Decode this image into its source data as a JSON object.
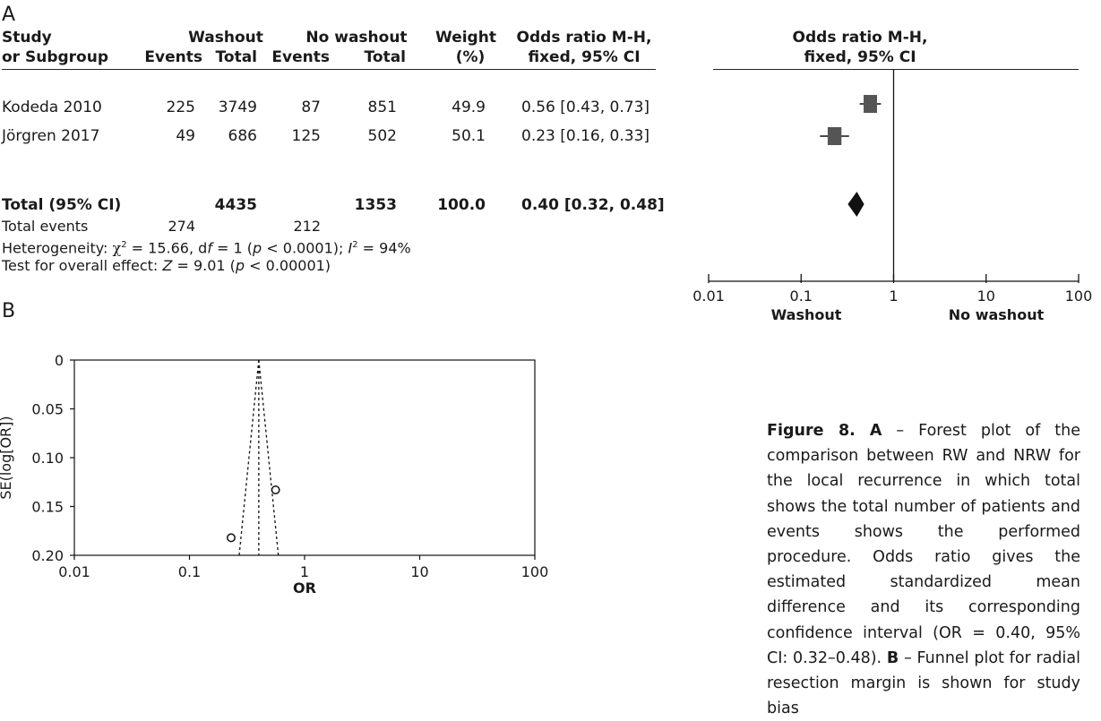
{
  "panel_a_label": "A",
  "panel_b_label": "B",
  "table": {
    "headers": {
      "study": [
        "Study",
        "or Subgroup"
      ],
      "washout": "Washout",
      "no_washout": "No washout",
      "events": "Events",
      "total": "Total",
      "weight": [
        "Weight",
        "(%)"
      ],
      "or": [
        "Odds ratio M-H,",
        "fixed, 95% CI"
      ],
      "plot_header": [
        "Odds ratio M-H,",
        "fixed, 95% CI"
      ]
    },
    "rows": [
      {
        "study": "Kodeda 2010",
        "w_events": "225",
        "w_total": "3749",
        "nw_events": "87",
        "nw_total": "851",
        "weight": "49.9",
        "or": "0.56 [0.43, 0.73]"
      },
      {
        "study": "Jörgren 2017",
        "w_events": "49",
        "w_total": "686",
        "nw_events": "125",
        "nw_total": "502",
        "weight": "50.1",
        "or": "0.23 [0.16, 0.33]"
      }
    ],
    "total_row": {
      "label": "Total (95% CI)",
      "w_total": "4435",
      "nw_total": "1353",
      "weight": "100.0",
      "or": "0.40 [0.32, 0.48]"
    },
    "events_row": {
      "label": "Total events",
      "w_events": "274",
      "nw_events": "212"
    },
    "heterogeneity": {
      "prefix": "Heterogeneity: ",
      "chi": "χ",
      "sup2": "2",
      "mid1": " = 15.66, d",
      "f": "f",
      "mid2": " = 1 (",
      "p": "p",
      "mid3": " < 0.0001); ",
      "I": "I",
      "sup2b": "2",
      "tail": " = 94%"
    },
    "overall_effect": {
      "prefix": "Test for overall effect: ",
      "Z": "Z",
      "mid": " = 9.01 (",
      "p": "p",
      "tail": " < 0.00001)"
    }
  },
  "chart_data": [
    {
      "type": "forest",
      "scale": "log",
      "xlim": [
        0.01,
        100
      ],
      "ticks": [
        0.01,
        0.1,
        1,
        10,
        100
      ],
      "tick_labels": [
        "0.01",
        "0.1",
        "1",
        "10",
        "100"
      ],
      "left_label": "Washout",
      "right_label": "No washout",
      "studies": [
        {
          "name": "Kodeda 2010",
          "or": 0.56,
          "ci": [
            0.43,
            0.73
          ],
          "weight": 49.9
        },
        {
          "name": "Jörgren 2017",
          "or": 0.23,
          "ci": [
            0.16,
            0.33
          ],
          "weight": 50.1
        }
      ],
      "pooled": {
        "or": 0.4,
        "ci": [
          0.32,
          0.48
        ]
      }
    },
    {
      "type": "scatter",
      "subtype": "funnel",
      "xscale": "log",
      "xlim": [
        0.01,
        100
      ],
      "ylim": [
        0,
        0.2
      ],
      "y_inverted": true,
      "xticks": [
        0.01,
        0.1,
        1,
        10,
        100
      ],
      "xtick_labels": [
        "0.01",
        "0.1",
        "1",
        "10",
        "100"
      ],
      "yticks": [
        0,
        0.05,
        0.1,
        0.15,
        0.2
      ],
      "ytick_labels": [
        "0",
        "0.05",
        "0.10",
        "0.15",
        "0.20"
      ],
      "xlabel": "OR",
      "ylabel": "SE(log[OR])",
      "pooled_or": 0.4,
      "points": [
        {
          "x": 0.56,
          "y": 0.133
        },
        {
          "x": 0.23,
          "y": 0.182
        }
      ]
    }
  ],
  "caption": {
    "fig": "Figure 8.",
    "a": "A",
    "a_text": " – Forest plot of the comparison between RW and NRW for the local recurrence in which total shows the total number of patients and events shows the performed procedure. Odds ratio gives the estimated standardized mean difference and its corresponding confidence interval (OR = 0.40, 95% CI: 0.32–0.48).",
    "b": "B",
    "b_text": " – Funnel plot for radial resection margin is shown for study bias"
  }
}
